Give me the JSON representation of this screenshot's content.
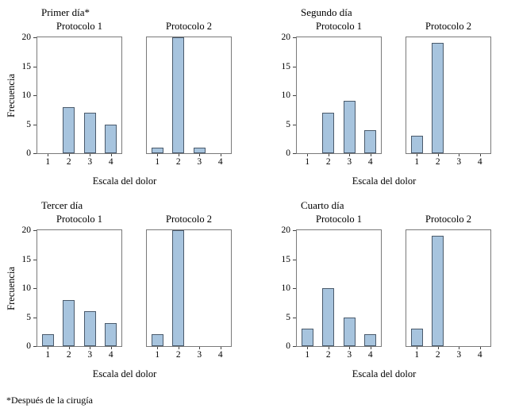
{
  "figure": {
    "footnote": "*Después de la cirugía"
  },
  "colors": {
    "bar_fill": "#a7c4de",
    "bar_border": "#4a5a6b",
    "axis_line": "#7a7a7a",
    "tick": "#404040",
    "text": "#000000"
  },
  "axis": {
    "yticks": [
      0,
      5,
      10,
      15,
      20
    ],
    "categories": [
      "1",
      "2",
      "3",
      "4"
    ]
  },
  "chart_data": [
    {
      "type": "bar",
      "title": "Primer día*",
      "xlabel": "Escala del dolor",
      "ylabel": "Frecuencia",
      "categories": [
        "1",
        "2",
        "3",
        "4"
      ],
      "ylim": [
        0,
        20
      ],
      "yticks": [
        0,
        5,
        10,
        15,
        20
      ],
      "grid": false,
      "series": [
        {
          "name": "Protocolo 1",
          "values": [
            0,
            8,
            7,
            5
          ]
        },
        {
          "name": "Protocolo 2",
          "values": [
            1,
            20,
            1,
            0
          ]
        }
      ]
    },
    {
      "type": "bar",
      "title": "Segundo día",
      "xlabel": "Escala del dolor",
      "ylabel": "",
      "categories": [
        "1",
        "2",
        "3",
        "4"
      ],
      "ylim": [
        0,
        20
      ],
      "yticks": [
        0,
        5,
        10,
        15,
        20
      ],
      "grid": false,
      "series": [
        {
          "name": "Protocolo 1",
          "values": [
            0,
            7,
            9,
            4
          ]
        },
        {
          "name": "Protocolo 2",
          "values": [
            3,
            19,
            0,
            0
          ]
        }
      ]
    },
    {
      "type": "bar",
      "title": "Tercer día",
      "xlabel": "Escala del dolor",
      "ylabel": "Frecuencia",
      "categories": [
        "1",
        "2",
        "3",
        "4"
      ],
      "ylim": [
        0,
        20
      ],
      "yticks": [
        0,
        5,
        10,
        15,
        20
      ],
      "grid": false,
      "series": [
        {
          "name": "Protocolo 1",
          "values": [
            2,
            8,
            6,
            4
          ]
        },
        {
          "name": "Protocolo 2",
          "values": [
            2,
            20,
            0,
            0
          ]
        }
      ]
    },
    {
      "type": "bar",
      "title": "Cuarto día",
      "xlabel": "Escala del dolor",
      "ylabel": "",
      "categories": [
        "1",
        "2",
        "3",
        "4"
      ],
      "ylim": [
        0,
        20
      ],
      "yticks": [
        0,
        5,
        10,
        15,
        20
      ],
      "grid": false,
      "series": [
        {
          "name": "Protocolo 1",
          "values": [
            3,
            10,
            5,
            2
          ]
        },
        {
          "name": "Protocolo 2",
          "values": [
            3,
            19,
            0,
            0
          ]
        }
      ]
    }
  ]
}
